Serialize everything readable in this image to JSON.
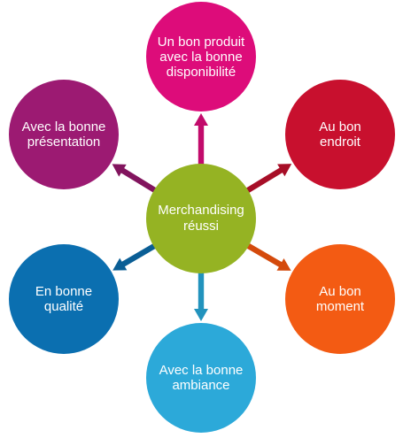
{
  "diagram": {
    "center": {
      "lines": [
        "Merchandising",
        "réussi"
      ],
      "color": "#95b323"
    },
    "nodes": [
      {
        "id": "produit",
        "lines": [
          "Un bon produit",
          "avec la bonne",
          "disponibilité"
        ],
        "color": "#dd0c7a",
        "arrow_color": "#c20a6b"
      },
      {
        "id": "endroit",
        "lines": [
          "Au bon",
          "endroit"
        ],
        "color": "#c8102e",
        "arrow_color": "#a70e27"
      },
      {
        "id": "moment",
        "lines": [
          "Au bon",
          "moment"
        ],
        "color": "#f35b13",
        "arrow_color": "#d44a0c"
      },
      {
        "id": "ambiance",
        "lines": [
          "Avec la bonne",
          "ambiance"
        ],
        "color": "#2ca9d9",
        "arrow_color": "#2293bd"
      },
      {
        "id": "qualite",
        "lines": [
          "En bonne",
          "qualité"
        ],
        "color": "#0b6fb0",
        "arrow_color": "#0a5e95"
      },
      {
        "id": "presentation",
        "lines": [
          "Avec la bonne",
          "présentation"
        ],
        "color": "#9c1a72",
        "arrow_color": "#82145e"
      }
    ]
  }
}
